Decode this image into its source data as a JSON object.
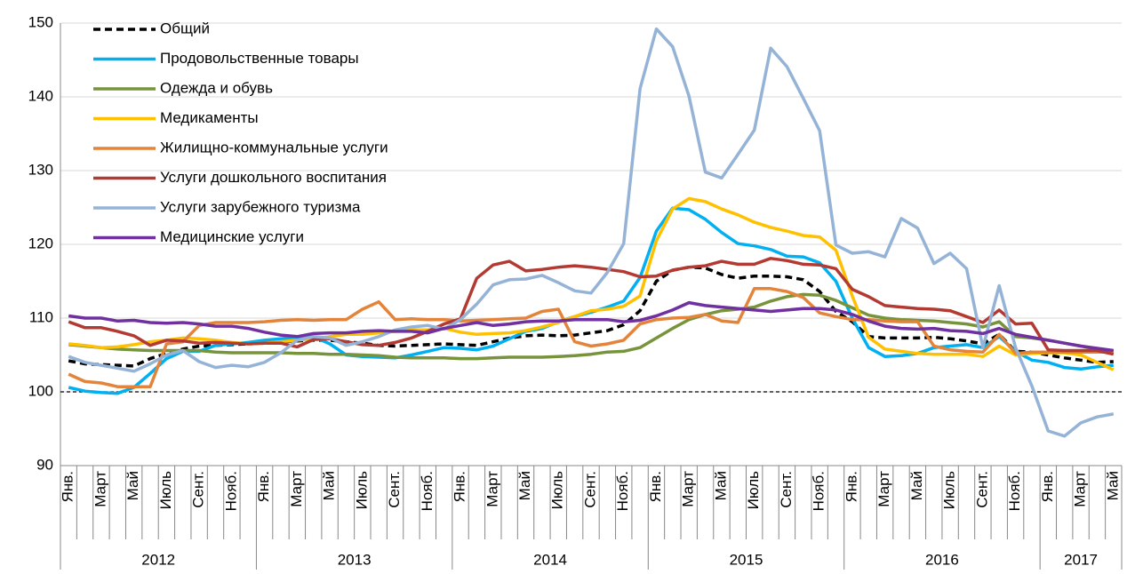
{
  "chart_data": {
    "type": "line",
    "categories": [
      "Янв.",
      null,
      "Март",
      null,
      "Май",
      null,
      "Июль",
      null,
      "Сент.",
      null,
      "Нояб.",
      null,
      "Янв.",
      null,
      "Март",
      null,
      "Май",
      null,
      "Июль",
      null,
      "Сент.",
      null,
      "Нояб.",
      null,
      "Янв.",
      null,
      "Март",
      null,
      "Май",
      null,
      "Июль",
      null,
      "Сент.",
      null,
      "Нояб.",
      null,
      "Янв.",
      null,
      "Март",
      null,
      "Май",
      null,
      "Июль",
      null,
      "Сент.",
      null,
      "Нояб.",
      null,
      "Янв.",
      null,
      "Март",
      null,
      "Май",
      null,
      "Июль",
      null,
      "Сент.",
      null,
      "Нояб.",
      null,
      "Янв.",
      null,
      "Март",
      null,
      "Май"
    ],
    "x_groups": [
      "2012",
      null,
      null,
      null,
      null,
      null,
      null,
      null,
      null,
      null,
      null,
      null,
      "2013",
      null,
      null,
      null,
      null,
      null,
      null,
      null,
      null,
      null,
      null,
      null,
      "2014",
      null,
      null,
      null,
      null,
      null,
      null,
      null,
      null,
      null,
      null,
      null,
      "2015",
      null,
      null,
      null,
      null,
      null,
      null,
      null,
      null,
      null,
      null,
      null,
      "2016",
      null,
      null,
      null,
      null,
      null,
      null,
      null,
      null,
      null,
      null,
      null,
      "2017",
      null,
      null,
      null,
      null
    ],
    "ylim": [
      90,
      150
    ],
    "yticks": [
      90,
      100,
      110,
      120,
      130,
      140,
      150
    ],
    "grid": true,
    "reference_line": 100,
    "legend": "top-left",
    "series": [
      {
        "name": "Общий",
        "color": "#000000",
        "dashed": true,
        "values": [
          104.2,
          103.8,
          103.7,
          103.6,
          103.5,
          104.5,
          105.2,
          105.8,
          106.2,
          106.3,
          106.4,
          106.5,
          106.6,
          106.8,
          106.9,
          107.0,
          107.0,
          106.8,
          106.6,
          106.3,
          106.2,
          106.3,
          106.4,
          106.5,
          106.4,
          106.3,
          106.8,
          107.3,
          107.6,
          107.7,
          107.6,
          107.7,
          108.0,
          108.3,
          109.1,
          111.0,
          115.0,
          116.5,
          116.9,
          116.8,
          115.9,
          115.4,
          115.7,
          115.7,
          115.6,
          115.2,
          113.6,
          110.9,
          109.5,
          107.5,
          107.3,
          107.3,
          107.3,
          107.4,
          107.2,
          106.9,
          106.5,
          107.8,
          105.5,
          105.4,
          105.0,
          104.6,
          104.3,
          104.0,
          104.1
        ]
      },
      {
        "name": "Продовольственные товары",
        "color": "#00b0f0",
        "values": [
          100.6,
          100.1,
          99.9,
          99.8,
          100.6,
          102.5,
          104.5,
          105.5,
          105.5,
          106.3,
          106.5,
          106.7,
          107.0,
          107.2,
          107.4,
          107.5,
          106.5,
          105.0,
          104.8,
          104.7,
          104.6,
          105.0,
          105.5,
          106.0,
          105.9,
          105.7,
          106.2,
          107.2,
          108.2,
          108.6,
          109.5,
          110.2,
          110.8,
          111.5,
          112.3,
          115.5,
          121.8,
          124.9,
          124.7,
          123.4,
          121.6,
          120.1,
          119.8,
          119.3,
          118.4,
          118.3,
          117.5,
          115.0,
          110.0,
          106.0,
          104.8,
          104.9,
          105.2,
          106.0,
          106.2,
          106.4,
          106.0,
          107.5,
          105.5,
          104.3,
          104.0,
          103.3,
          103.1,
          103.4,
          103.6
        ]
      },
      {
        "name": "Одежда и обувь",
        "color": "#77933c",
        "values": [
          106.4,
          106.2,
          106.0,
          105.8,
          105.7,
          105.6,
          105.6,
          105.6,
          105.6,
          105.4,
          105.3,
          105.3,
          105.3,
          105.3,
          105.2,
          105.2,
          105.1,
          105.1,
          105.0,
          104.9,
          104.7,
          104.6,
          104.6,
          104.6,
          104.5,
          104.5,
          104.6,
          104.7,
          104.7,
          104.7,
          104.8,
          104.9,
          105.1,
          105.4,
          105.5,
          106.0,
          107.3,
          108.6,
          109.8,
          110.5,
          111.0,
          111.2,
          111.5,
          112.3,
          112.9,
          113.2,
          113.1,
          112.4,
          111.4,
          110.4,
          110.0,
          109.8,
          109.7,
          109.6,
          109.4,
          109.2,
          108.8,
          109.5,
          107.5,
          107.3,
          107.0,
          106.6,
          106.2,
          105.8,
          105.5
        ]
      },
      {
        "name": "Медикаменты",
        "color": "#ffc000",
        "values": [
          106.5,
          106.3,
          106.0,
          106.1,
          106.4,
          106.8,
          107.0,
          107.3,
          107.2,
          107.0,
          106.7,
          106.5,
          106.6,
          106.8,
          107.0,
          107.2,
          107.5,
          107.8,
          107.8,
          108.0,
          108.2,
          108.4,
          108.4,
          108.6,
          108.1,
          107.8,
          107.9,
          108.0,
          108.3,
          108.8,
          109.4,
          110.2,
          111.0,
          111.2,
          111.6,
          113.0,
          120.5,
          124.8,
          126.2,
          125.8,
          124.8,
          124.0,
          123.0,
          122.3,
          121.8,
          121.2,
          121.0,
          119.2,
          113.0,
          107.4,
          105.8,
          105.5,
          105.2,
          105.1,
          105.1,
          105.1,
          104.8,
          106.2,
          105.0,
          105.2,
          105.3,
          105.3,
          105.0,
          104.0,
          103.0
        ]
      },
      {
        "name": "Жилищно-коммунальные услуги",
        "color": "#e3843a",
        "values": [
          102.4,
          101.4,
          101.2,
          100.7,
          100.7,
          100.7,
          106.5,
          106.8,
          109.0,
          109.4,
          109.4,
          109.4,
          109.5,
          109.7,
          109.8,
          109.7,
          109.8,
          109.8,
          111.2,
          112.2,
          109.8,
          109.9,
          109.8,
          109.8,
          109.6,
          109.7,
          109.8,
          109.9,
          110.0,
          110.9,
          111.2,
          106.8,
          106.2,
          106.5,
          107.0,
          109.2,
          109.8,
          110.0,
          110.1,
          110.5,
          109.6,
          109.4,
          114.0,
          114.0,
          113.6,
          112.8,
          110.7,
          110.2,
          109.8,
          109.8,
          109.6,
          109.5,
          109.5,
          106.2,
          105.7,
          105.5,
          105.4,
          107.8,
          105.2,
          105.4,
          105.4,
          105.4,
          105.4,
          105.4,
          105.4
        ]
      },
      {
        "name": "Услуги дошкольного воспитания",
        "color": "#b33a32",
        "values": [
          109.5,
          108.7,
          108.7,
          108.2,
          107.6,
          106.3,
          107.0,
          106.9,
          106.6,
          106.7,
          106.6,
          106.5,
          106.6,
          106.6,
          106.1,
          107.1,
          107.2,
          106.8,
          106.4,
          106.3,
          106.7,
          107.3,
          108.2,
          109.2,
          109.9,
          115.4,
          117.2,
          117.7,
          116.4,
          116.6,
          116.9,
          117.1,
          116.9,
          116.6,
          116.3,
          115.6,
          115.7,
          116.5,
          116.9,
          117.1,
          117.7,
          117.3,
          117.3,
          118.1,
          117.8,
          117.3,
          117.2,
          116.7,
          113.9,
          112.9,
          111.7,
          111.5,
          111.3,
          111.2,
          111.0,
          110.2,
          109.4,
          111.1,
          109.2,
          109.3,
          105.7,
          105.6,
          105.6,
          105.6,
          105.1
        ]
      },
      {
        "name": "Услуги зарубежного туризма",
        "color": "#95b3d7",
        "values": [
          104.8,
          104.0,
          103.6,
          103.2,
          102.8,
          103.8,
          105.0,
          105.6,
          104.1,
          103.3,
          103.6,
          103.4,
          104.0,
          105.3,
          107.0,
          107.5,
          107.3,
          106.3,
          106.8,
          107.5,
          108.4,
          108.8,
          109.0,
          108.5,
          109.8,
          111.9,
          114.5,
          115.2,
          115.3,
          115.8,
          114.8,
          113.7,
          113.4,
          116.2,
          120.1,
          141.1,
          149.2,
          146.8,
          140.1,
          129.8,
          129.0,
          132.2,
          135.5,
          146.6,
          144.1,
          139.8,
          135.4,
          119.9,
          118.8,
          119.0,
          118.3,
          123.5,
          122.2,
          117.4,
          118.8,
          116.7,
          106.0,
          114.4,
          106.0,
          100.8,
          94.7,
          94.0,
          95.8,
          96.6,
          97.0
        ]
      },
      {
        "name": "Медицинские услуги",
        "color": "#7030a0",
        "values": [
          110.3,
          110.0,
          110.0,
          109.6,
          109.7,
          109.4,
          109.3,
          109.4,
          109.2,
          108.9,
          108.9,
          108.6,
          108.1,
          107.7,
          107.5,
          107.9,
          108.0,
          108.0,
          108.2,
          108.3,
          108.2,
          108.2,
          108.0,
          108.6,
          109.0,
          109.4,
          109.0,
          109.2,
          109.5,
          109.6,
          109.6,
          109.8,
          109.8,
          109.8,
          109.5,
          109.7,
          110.3,
          111.1,
          112.1,
          111.7,
          111.5,
          111.3,
          111.1,
          110.9,
          111.1,
          111.3,
          111.3,
          111.1,
          110.5,
          109.6,
          108.9,
          108.6,
          108.5,
          108.6,
          108.3,
          108.2,
          107.9,
          108.6,
          107.8,
          107.4,
          107.0,
          106.6,
          106.2,
          105.9,
          105.6
        ]
      }
    ]
  }
}
